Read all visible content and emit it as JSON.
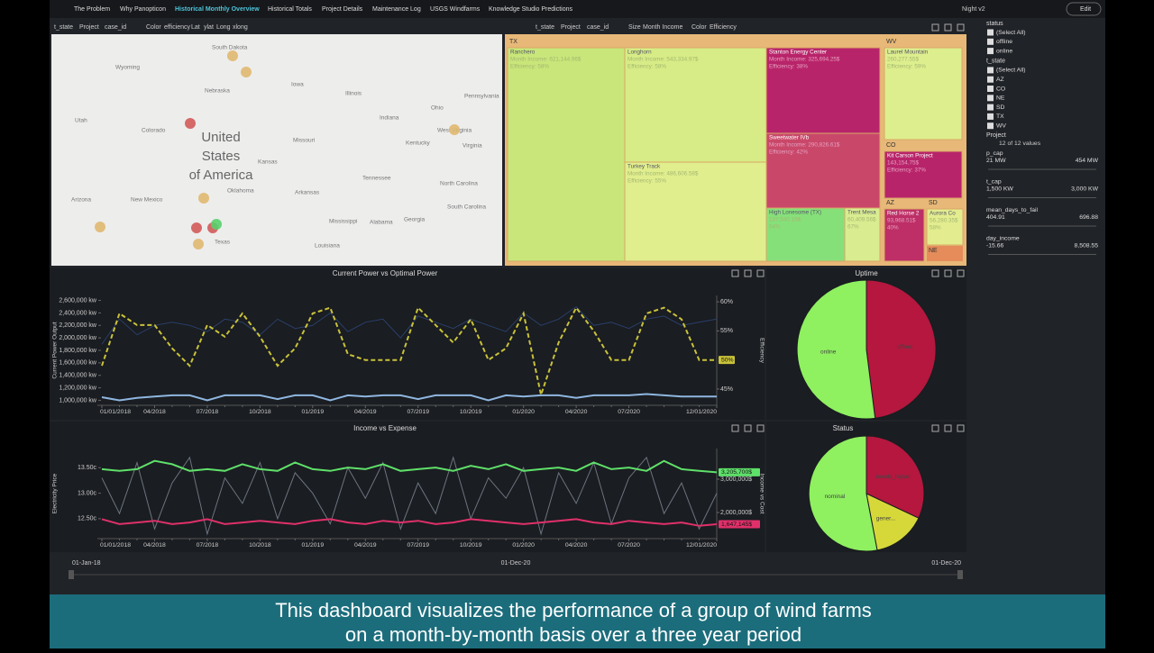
{
  "nav": {
    "tabs": [
      "The Problem",
      "Why Panopticon",
      "Historical Monthly Overview",
      "Historical Totals",
      "Project Details",
      "Maintenance Log",
      "USGS Windfarms",
      "Knowledge Studio Predictions"
    ],
    "active": 2,
    "theme": "Night v2",
    "edit": "Edit"
  },
  "map": {
    "toolbar": [
      "t_state",
      "Project",
      "case_id",
      "Color",
      "efficiency",
      "Lat",
      "ylat",
      "Long",
      "xlong"
    ],
    "places": [
      "South Dakota",
      "Wyoming",
      "Nebraska",
      "Iowa",
      "Illinois",
      "Indiana",
      "Ohio",
      "Pennsylvania",
      "Utah",
      "Colorado",
      "Kansas",
      "Missouri",
      "Kentucky",
      "West Virginia",
      "Virginia",
      "Arizona",
      "New Mexico",
      "Oklahoma",
      "Arkansas",
      "Tennessee",
      "North Carolina",
      "South Carolina",
      "Mississippi",
      "Alabama",
      "Georgia",
      "Texas",
      "Louisiana"
    ],
    "country": [
      "United",
      "States",
      "of America"
    ]
  },
  "treemap": {
    "toolbar": [
      "t_state",
      "Project",
      "case_id",
      "Size",
      "Month Income",
      "Color",
      "Efficiency"
    ],
    "states": [
      "TX",
      "WV",
      "CO",
      "AZ",
      "SD",
      "NE"
    ],
    "tiles": [
      {
        "name": "Ranchero",
        "income": "Month Income: 621,144.96$",
        "efficiency": "Efficiency: 58%"
      },
      {
        "name": "Longhorn",
        "income": "Month Income: 543,334.97$",
        "efficiency": "Efficiency: 58%"
      },
      {
        "name": "Turkey Track",
        "income": "Month Income: 486,606.58$",
        "efficiency": "Efficiency: 55%"
      },
      {
        "name": "Stanton Energy Center",
        "income": "Month Income: 325,694.25$",
        "efficiency": "Efficiency: 38%"
      },
      {
        "name": "Sweetwater IVb",
        "income": "Month Income: 290,826.61$",
        "efficiency": "Efficiency: 42%"
      },
      {
        "name": "High Lonesome (TX)",
        "income": "137,540.18$",
        "efficiency": "64%"
      },
      {
        "name": "Trent Mesa",
        "income": "60,409.56$",
        "efficiency": "67%"
      },
      {
        "name": "Laurel Mountain",
        "income": "260,277.55$",
        "efficiency": "Efficiency: 59%"
      },
      {
        "name": "Kit Carson Project",
        "income": "143,154.75$",
        "efficiency": "Efficiency: 37%"
      },
      {
        "name": "Red Horse 2",
        "income": "93,968.51$",
        "efficiency": "40%"
      },
      {
        "name": "Aurora Co",
        "income": "56,280.35$",
        "efficiency": "58%"
      }
    ]
  },
  "filters": {
    "status": {
      "title": "status",
      "items": [
        "(Select All)",
        "offline",
        "online"
      ]
    },
    "t_state": {
      "title": "t_state",
      "items": [
        "(Select All)",
        "AZ",
        "CO",
        "NE",
        "SD",
        "TX",
        "WV"
      ]
    },
    "project": {
      "title": "Project",
      "summary": "12 of 12 values"
    },
    "ranges": [
      {
        "title": "p_cap",
        "min": "21 MW",
        "max": "454 MW"
      },
      {
        "title": "t_cap",
        "min": "1,500 KW",
        "max": "3,000 KW"
      },
      {
        "title": "mean_days_to_fail",
        "min": "404.91",
        "max": "696.88"
      },
      {
        "title": "day_income",
        "min": "-15.66",
        "max": "8,508.55"
      }
    ]
  },
  "charts": [
    {
      "type": "line",
      "title": "Current Power vs Optimal Power",
      "y_label": "Current Power Output",
      "y2_label": "Efficiency",
      "categories": [
        "01/01/2018",
        null,
        null,
        "04/2018",
        null,
        null,
        "07/2018",
        null,
        null,
        "10/2018",
        null,
        null,
        "01/2019",
        null,
        null,
        "04/2019",
        null,
        null,
        "07/2019",
        null,
        null,
        "10/2019",
        null,
        null,
        "01/2020",
        null,
        null,
        "04/2020",
        null,
        null,
        "07/2020",
        null,
        null,
        null,
        null,
        "12/01/2020"
      ],
      "ylim": [
        920000,
        2680000
      ],
      "yticks": [
        {
          "value": 1000000,
          "label": "1,000,000 kw"
        },
        {
          "value": 1200000,
          "label": "1,200,000 kw"
        },
        {
          "value": 1400000,
          "label": "1,400,000 kw"
        },
        {
          "value": 1600000,
          "label": "1,600,000 kw"
        },
        {
          "value": 1800000,
          "label": "1,800,000 kw"
        },
        {
          "value": 2000000,
          "label": "2,000,000 kw"
        },
        {
          "value": 2200000,
          "label": "2,200,000 kw"
        },
        {
          "value": 2400000,
          "label": "2,400,000 kw"
        },
        {
          "value": 2600000,
          "label": "2,600,000 kw"
        }
      ],
      "y2lim": [
        42.2,
        61.1
      ],
      "y2ticks": [
        {
          "value": 45,
          "label": "45%"
        },
        {
          "value": 55,
          "label": "55%"
        },
        {
          "value": 60,
          "label": "60%"
        }
      ],
      "series": [
        {
          "color": "#2a3f6b",
          "values": [
            1900000,
            2300000,
            2050000,
            2200000,
            2250000,
            2200000,
            2100000,
            2300000,
            2250000,
            2050000,
            2300000,
            2150000,
            2200000,
            2400000,
            2100000,
            2250000,
            2300000,
            2000000,
            2350000,
            2250000,
            2150000,
            2300000,
            2200000,
            2100000,
            2400000,
            2200000,
            2300000,
            2500000,
            2200000,
            2250000,
            2150000,
            2300000,
            2350000,
            2200000,
            2250000,
            2300000
          ]
        },
        {
          "color": "#8fb6e0",
          "values": [
            1050000,
            1000000,
            1040000,
            1060000,
            1080000,
            1080000,
            1000000,
            1080000,
            1080000,
            1080000,
            1020000,
            1080000,
            1080000,
            1000000,
            1080000,
            1060000,
            1080000,
            1080000,
            1020000,
            1080000,
            1080000,
            1080000,
            1000000,
            1080000,
            1060000,
            1080000,
            1080000,
            1040000,
            1080000,
            1080000,
            1080000,
            1100000,
            1080000,
            1060000,
            1060000,
            1060000
          ]
        },
        {
          "color": "#c9c23a",
          "dashed": true,
          "axis": "y2",
          "values": [
            49,
            58,
            56,
            56,
            52,
            49,
            56,
            54,
            58,
            54,
            49,
            52,
            58,
            59,
            51,
            50,
            50,
            50,
            59,
            56,
            53,
            57,
            50,
            52,
            58,
            44,
            53,
            59,
            55,
            50,
            50,
            58,
            59,
            57,
            50,
            50
          ],
          "end_label": "50%"
        }
      ]
    },
    {
      "type": "line",
      "title": "Income vs Expense",
      "y_label": "Electricity Price",
      "y2_label": "Income vs Cost",
      "categories": [
        "01/01/2018",
        null,
        null,
        "04/2018",
        null,
        null,
        "07/2018",
        null,
        null,
        "10/2018",
        null,
        null,
        "01/2019",
        null,
        null,
        "04/2019",
        null,
        null,
        "07/2019",
        null,
        null,
        "10/2019",
        null,
        null,
        "01/2020",
        null,
        null,
        "04/2020",
        null,
        null,
        "07/2020",
        null,
        null,
        null,
        null,
        "12/01/2020"
      ],
      "ylim": [
        12.11,
        13.875
      ],
      "yticks": [
        {
          "value": 12.5,
          "label": "12.50c"
        },
        {
          "value": 13,
          "label": "13.00c"
        },
        {
          "value": 13.5,
          "label": "13.50c"
        }
      ],
      "y2lim": [
        1216000,
        3919000
      ],
      "y2ticks": [
        {
          "value": 2000000,
          "label": "2,000,000$"
        },
        {
          "value": 3000000,
          "label": "3,000,000$"
        }
      ],
      "series": [
        {
          "color": "#6d7480",
          "values": [
            13.3,
            12.6,
            13.6,
            12.3,
            13.2,
            13.7,
            12.2,
            13.3,
            12.8,
            13.6,
            12.5,
            13.4,
            13.0,
            12.4,
            13.5,
            12.9,
            13.6,
            12.3,
            13.2,
            12.6,
            13.7,
            12.5,
            13.3,
            12.9,
            13.5,
            12.2,
            13.4,
            12.8,
            13.6,
            12.4,
            13.3,
            13.7,
            12.6,
            13.2,
            12.3,
            13.0
          ]
        },
        {
          "color": "#5fe06a",
          "axis": "y2",
          "values": [
            3300000,
            3250000,
            3300000,
            3550000,
            3450000,
            3250000,
            3300000,
            3250000,
            3450000,
            3300000,
            3250000,
            3500000,
            3300000,
            3250000,
            3350000,
            3300000,
            3450000,
            3250000,
            3300000,
            3350000,
            3250000,
            3400000,
            3300000,
            3450000,
            3250000,
            3300000,
            3350000,
            3250000,
            3500000,
            3300000,
            3350000,
            3250000,
            3550000,
            3300000,
            3250000,
            3205700
          ],
          "end_label": "3,205,700$"
        },
        {
          "color": "#e0306a",
          "axis": "y2",
          "values": [
            1800000,
            1650000,
            1700000,
            1750000,
            1650000,
            1700000,
            1800000,
            1650000,
            1700000,
            1750000,
            1700000,
            1650000,
            1750000,
            1800000,
            1700000,
            1650000,
            1750000,
            1700000,
            1750000,
            1650000,
            1700000,
            1800000,
            1750000,
            1700000,
            1650000,
            1700000,
            1750000,
            1800000,
            1700000,
            1650000,
            1750000,
            1700000,
            1650000,
            1700000,
            1600000,
            1647145
          ],
          "end_label": "1,647,145$"
        }
      ]
    },
    {
      "type": "pie",
      "title": "Uptime",
      "categories": [
        "offline",
        "online"
      ],
      "values": [
        48,
        52
      ],
      "colors": [
        "#b5173e",
        "#8ff060"
      ]
    },
    {
      "type": "pie",
      "title": "Status",
      "categories": [
        "needs_repair",
        "gener...",
        "nominal"
      ],
      "values": [
        32,
        15,
        53
      ],
      "colors": [
        "#b5173e",
        "#d6d83a",
        "#8ff060"
      ]
    }
  ],
  "timeline": {
    "start": "01-Jan-18",
    "middle": "01-Dec-20",
    "end": "01-Dec-20"
  },
  "caption": [
    "This dashboard visualizes the performance of a group of wind farms",
    "on a month-by-month basis over a three year period"
  ]
}
